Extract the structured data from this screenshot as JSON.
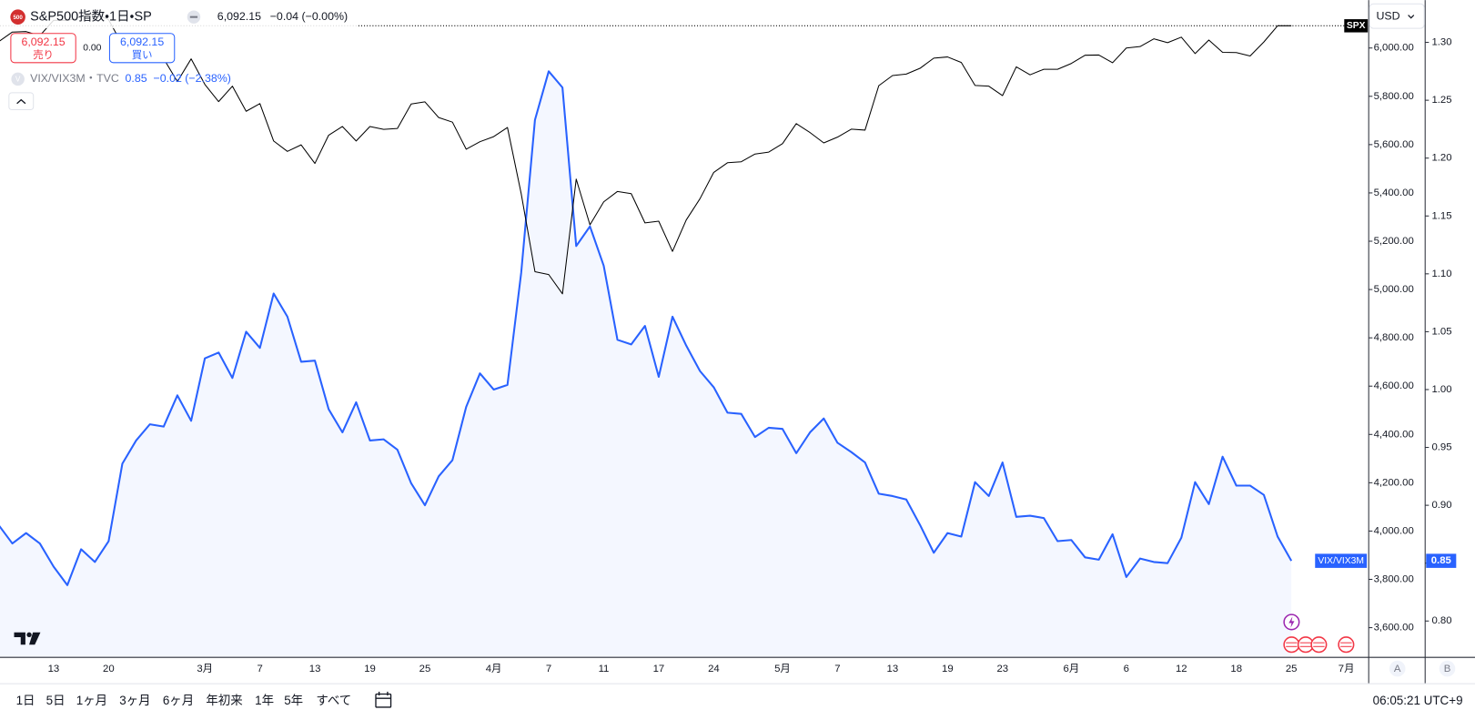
{
  "chart_data": {
    "type": "line",
    "categories": [
      null,
      null,
      null,
      null,
      "13",
      null,
      null,
      null,
      "20",
      null,
      null,
      null,
      null,
      null,
      null,
      "3月",
      null,
      null,
      null,
      "7",
      null,
      null,
      null,
      "13",
      null,
      null,
      null,
      "19",
      null,
      null,
      null,
      "25",
      null,
      null,
      null,
      null,
      "4月",
      null,
      null,
      null,
      "7",
      null,
      null,
      null,
      "11",
      null,
      null,
      null,
      "17",
      null,
      null,
      null,
      "24",
      null,
      null,
      null,
      null,
      "5月",
      null,
      null,
      null,
      "7",
      null,
      null,
      null,
      "13",
      null,
      null,
      null,
      "19",
      null,
      null,
      null,
      "23",
      null,
      null,
      null,
      null,
      "6月",
      null,
      null,
      null,
      "6",
      null,
      null,
      null,
      "12",
      null,
      null,
      null,
      "18",
      null,
      null,
      null,
      "25",
      null,
      null,
      null,
      "7月"
    ],
    "series": [
      {
        "name": "S&P500指数",
        "color": "#000000",
        "values": [
          6026,
          6066,
          6068,
          6051,
          6115,
          6114,
          6129,
          6144,
          6117,
          6013,
          5983,
          5955,
          5956,
          5861,
          5955,
          5849,
          5778,
          5842,
          5738,
          5770,
          5615,
          5572,
          5599,
          5522,
          5639,
          5675,
          5615,
          5675,
          5663,
          5667,
          5768,
          5777,
          5712,
          5693,
          5581,
          5612,
          5633,
          5671,
          5397,
          5074,
          5062,
          4982,
          5457,
          5268,
          5363,
          5406,
          5397,
          5276,
          5283,
          5158,
          5288,
          5376,
          5485,
          5525,
          5529,
          5561,
          5569,
          5604,
          5687,
          5650,
          5607,
          5631,
          5664,
          5660,
          5844,
          5886,
          5892,
          5916,
          5958,
          5963,
          5940,
          5845,
          5842,
          5803,
          5922,
          5889,
          5912,
          5912,
          5936,
          5970,
          5971,
          5939,
          6000,
          6006,
          6038,
          6022,
          6045,
          5977,
          6033,
          5982,
          5981,
          5967,
          6025,
          6092,
          6092,
          null,
          null,
          null,
          null
        ]
      },
      {
        "name": "VIX/VIX3M",
        "color": "#2962ff",
        "fill": "rgba(41,98,255,0.05)",
        "axis": "y2",
        "values": [
          0.883,
          0.867,
          0.876,
          0.867,
          0.847,
          0.831,
          0.862,
          0.851,
          0.869,
          0.936,
          0.956,
          0.97,
          0.968,
          0.995,
          0.973,
          1.027,
          1.032,
          1.01,
          1.05,
          1.036,
          1.083,
          1.063,
          1.024,
          1.025,
          0.983,
          0.963,
          0.989,
          0.956,
          0.957,
          0.948,
          0.919,
          0.9,
          0.925,
          0.939,
          0.985,
          1.014,
          1.0,
          1.004,
          1.101,
          1.233,
          1.275,
          1.261,
          1.124,
          1.141,
          1.107,
          1.043,
          1.039,
          1.055,
          1.011,
          1.063,
          1.038,
          1.016,
          1.002,
          0.98,
          0.979,
          0.959,
          0.967,
          0.966,
          0.945,
          0.963,
          0.975,
          0.954,
          0.946,
          0.937,
          0.91,
          0.908,
          0.905,
          0.883,
          0.859,
          0.876,
          0.873,
          0.92,
          0.908,
          0.937,
          0.89,
          0.891,
          0.889,
          0.869,
          0.87,
          0.855,
          0.853,
          0.875,
          0.838,
          0.854,
          0.851,
          0.85,
          0.872,
          0.92,
          0.901,
          0.942,
          0.917,
          0.917,
          0.909,
          0.873,
          0.852,
          null,
          null,
          null,
          null
        ]
      }
    ],
    "ylim": [
      3479,
      6179
    ],
    "yticks": [
      {
        "value": 3600,
        "label": "3,600.00"
      },
      {
        "value": 3800,
        "label": "3,800.00"
      },
      {
        "value": 4000,
        "label": "4,000.00"
      },
      {
        "value": 4200,
        "label": "4,200.00"
      },
      {
        "value": 4400,
        "label": "4,400.00"
      },
      {
        "value": 4600,
        "label": "4,600.00"
      },
      {
        "value": 4800,
        "label": "4,800.00"
      },
      {
        "value": 5000,
        "label": "5,000.00"
      },
      {
        "value": 5200,
        "label": "5,200.00"
      },
      {
        "value": 5400,
        "label": "5,400.00"
      },
      {
        "value": 5600,
        "label": "5,600.00"
      },
      {
        "value": 5800,
        "label": "5,800.00"
      },
      {
        "value": 6000,
        "label": "6,000.00"
      }
    ],
    "y2lim": [
      0.769,
      1.3325
    ],
    "y2ticks": [
      {
        "value": 0.8,
        "label": "0.80"
      },
      {
        "value": 0.85,
        "label": "0.85"
      },
      {
        "value": 0.9,
        "label": "0.90"
      },
      {
        "value": 0.95,
        "label": "0.95"
      },
      {
        "value": 1.0,
        "label": "1.00"
      },
      {
        "value": 1.05,
        "label": "1.05"
      },
      {
        "value": 1.1,
        "label": "1.10"
      },
      {
        "value": 1.15,
        "label": "1.15"
      },
      {
        "value": 1.2,
        "label": "1.20"
      },
      {
        "value": 1.25,
        "label": "1.25"
      },
      {
        "value": 1.3,
        "label": "1.30"
      }
    ],
    "grid": false
  },
  "ui": {
    "header": {
      "icon": "500",
      "title": "S&P500指数・1日・SP",
      "last": "6,092.15",
      "change": "−0.04 (−0.00%)"
    },
    "trade": {
      "sell_price": "6,092.15",
      "sell": "売り",
      "spread": "0.00",
      "buy_price": "6,092.15",
      "buy": "買い"
    },
    "overlay": {
      "icon": "V",
      "title": "VIX/VIX3M・TVC",
      "last": "0.85",
      "change": "−0.02 (−2.38%)"
    },
    "axis": {
      "currency": "USD",
      "symbol_tag": "SPX",
      "last_tag": "0.85",
      "scale_a": "A",
      "scale_b": "B"
    },
    "ranges": [
      "1日",
      "5日",
      "1ヶ月",
      "3ヶ月",
      "6ヶ月",
      "年初来",
      "1年",
      "5年",
      "すべて"
    ],
    "clock": "06:05:21 UTC+9"
  }
}
